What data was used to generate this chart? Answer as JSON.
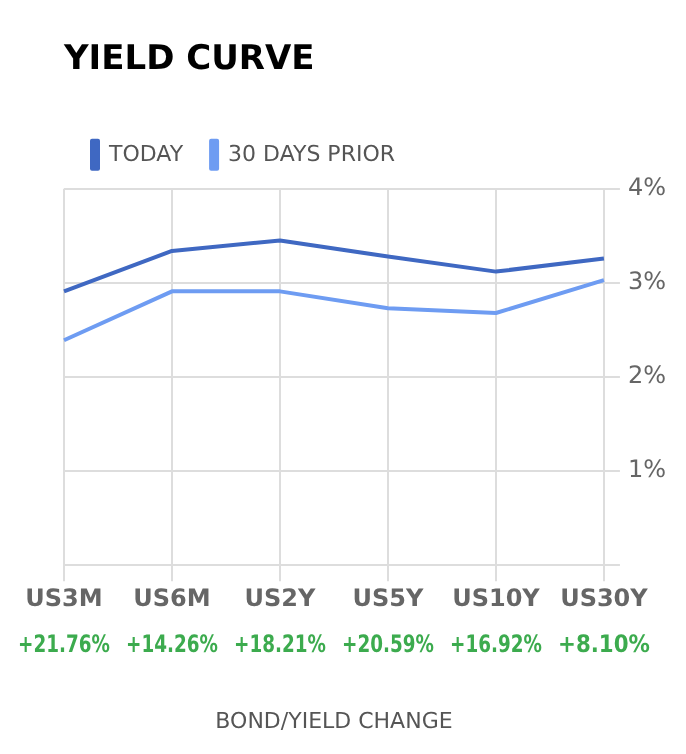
{
  "chart_data": {
    "type": "line",
    "title": "YIELD CURVE",
    "xlabel": "BOND/YIELD CHANGE",
    "categories": [
      "US3M",
      "US6M",
      "US2Y",
      "US5Y",
      "US10Y",
      "US30Y"
    ],
    "series": [
      {
        "name": "TODAY",
        "color": "#3f68c2",
        "values": [
          2.91,
          3.34,
          3.45,
          3.28,
          3.12,
          3.26
        ]
      },
      {
        "name": "30 DAYS PRIOR",
        "color": "#6e9cf2",
        "values": [
          2.39,
          2.91,
          2.91,
          2.73,
          2.68,
          3.03
        ]
      }
    ],
    "ylim": [
      0,
      4
    ],
    "yticks": [
      {
        "value": 0,
        "label": null
      },
      {
        "value": 1,
        "label": "1%"
      },
      {
        "value": 2,
        "label": "2%"
      },
      {
        "value": 3,
        "label": "3%"
      },
      {
        "value": 4,
        "label": "4%"
      }
    ],
    "grid": true,
    "legend": "top left",
    "marker": "none",
    "annotations": [
      "+21.76%",
      "+14.26%",
      "+18.21%",
      "+20.59%",
      "+16.92%",
      "+8.10%"
    ]
  }
}
